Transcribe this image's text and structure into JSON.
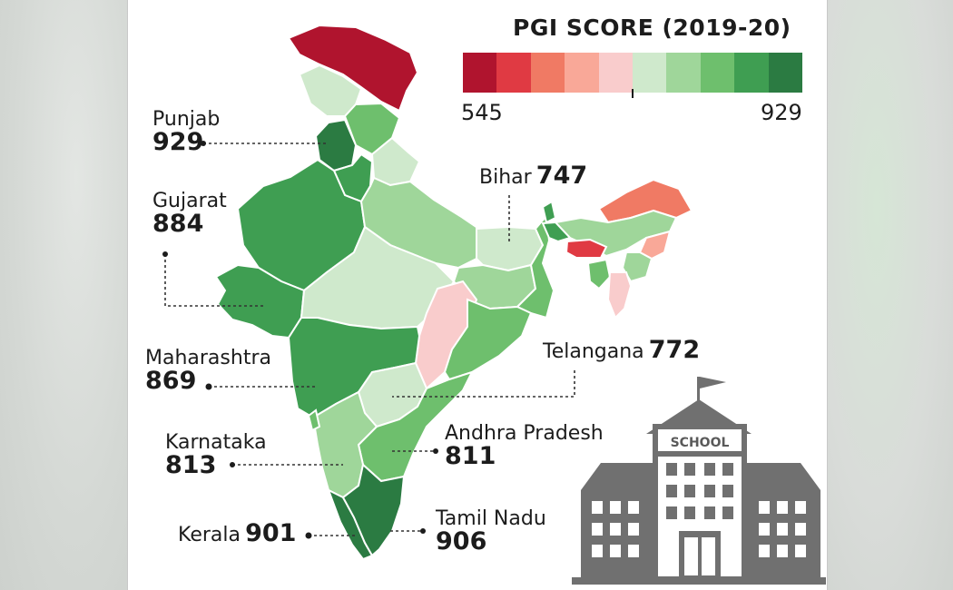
{
  "legend": {
    "title": "PGI SCORE (2019-20)",
    "min_label": "545",
    "max_label": "929",
    "colors": [
      "#b0142e",
      "#e03a43",
      "#f07a64",
      "#f9a898",
      "#f9cccc",
      "#cfe9cc",
      "#9fd69a",
      "#6ebf6d",
      "#3f9e52",
      "#2b7b42"
    ]
  },
  "states": [
    {
      "name": "Punjab",
      "value": "929"
    },
    {
      "name": "Gujarat",
      "value": "884"
    },
    {
      "name": "Bihar",
      "value": "747"
    },
    {
      "name": "Maharashtra",
      "value": "869"
    },
    {
      "name": "Telangana",
      "value": "772"
    },
    {
      "name": "Karnataka",
      "value": "813"
    },
    {
      "name": "Andhra Pradesh",
      "value": "811"
    },
    {
      "name": "Kerala",
      "value": "901"
    },
    {
      "name": "Tamil Nadu",
      "value": "906"
    }
  ],
  "school_sign": "SCHOOL",
  "region_colors": {
    "darkred": "#b0142e",
    "red": "#e03a43",
    "salmon": "#f07a64",
    "lightsalmon": "#f9a898",
    "pink": "#f9cccc",
    "palegreen": "#cfe9cc",
    "lightgreen": "#9fd69a",
    "midgreen": "#6ebf6d",
    "green": "#3f9e52",
    "darkgreen": "#2b7b42",
    "building": "#707070"
  }
}
